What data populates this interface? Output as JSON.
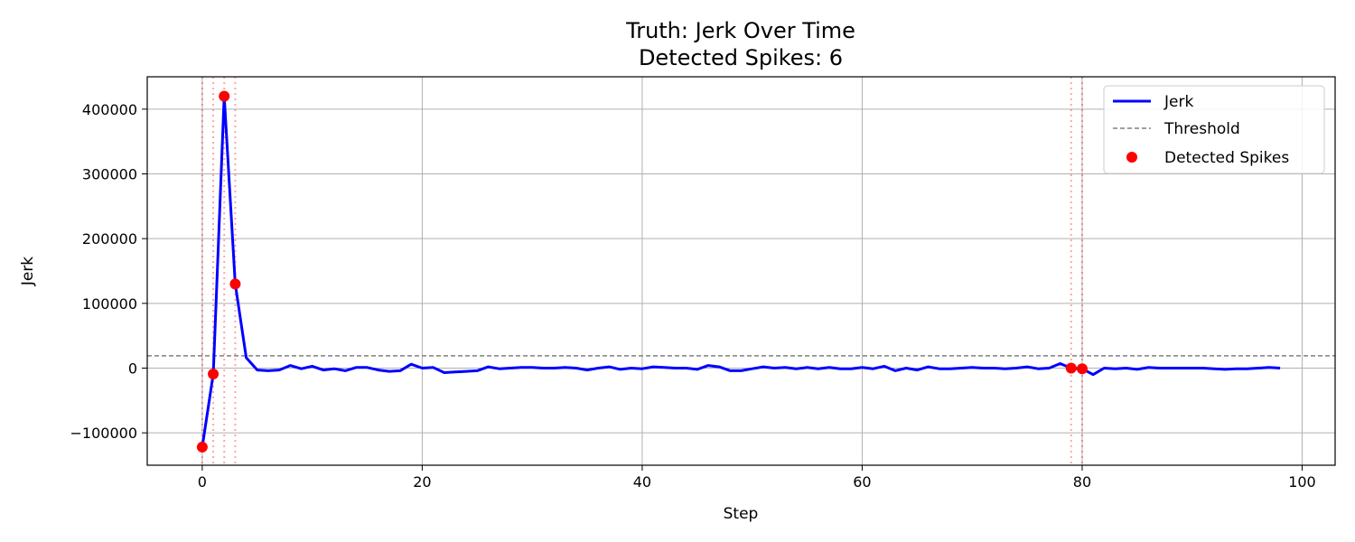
{
  "chart_data": {
    "type": "line",
    "title": "Truth: Jerk Over Time",
    "subtitle": "Detected Spikes: 6",
    "xlabel": "Step",
    "ylabel": "Jerk",
    "xlim": [
      -5,
      103
    ],
    "ylim": [
      -150000,
      450000
    ],
    "xticks": [
      0,
      20,
      40,
      60,
      80,
      100
    ],
    "xtick_labels": [
      "0",
      "20",
      "40",
      "60",
      "80",
      "100"
    ],
    "yticks": [
      -100000,
      0,
      100000,
      200000,
      300000,
      400000
    ],
    "ytick_labels": [
      "−100000",
      "0",
      "100000",
      "200000",
      "300000",
      "400000"
    ],
    "grid": true,
    "legend_position": "top-right",
    "threshold": 19000,
    "series": [
      {
        "name": "Jerk",
        "color": "#0000ff",
        "x": [
          0,
          1,
          2,
          3,
          4,
          5,
          6,
          7,
          8,
          9,
          10,
          11,
          12,
          13,
          14,
          15,
          16,
          17,
          18,
          19,
          20,
          21,
          22,
          23,
          24,
          25,
          26,
          27,
          28,
          29,
          30,
          31,
          32,
          33,
          34,
          35,
          36,
          37,
          38,
          39,
          40,
          41,
          42,
          43,
          44,
          45,
          46,
          47,
          48,
          49,
          50,
          51,
          52,
          53,
          54,
          55,
          56,
          57,
          58,
          59,
          60,
          61,
          62,
          63,
          64,
          65,
          66,
          67,
          68,
          69,
          70,
          71,
          72,
          73,
          74,
          75,
          76,
          77,
          78,
          79,
          80,
          81,
          82,
          83,
          84,
          85,
          86,
          87,
          88,
          89,
          90,
          91,
          92,
          93,
          94,
          95,
          96,
          97,
          98
        ],
        "y": [
          -122000,
          -9000,
          420000,
          130000,
          16000,
          -3000,
          -4000,
          -3000,
          4000,
          -1000,
          3000,
          -3000,
          -1000,
          -4000,
          1000,
          1000,
          -3000,
          -5000,
          -4000,
          6000,
          0,
          1000,
          -7000,
          -6000,
          -5000,
          -4000,
          2000,
          -1000,
          0,
          1000,
          1000,
          0,
          0,
          1000,
          0,
          -3000,
          0,
          2000,
          -2000,
          0,
          -1000,
          2000,
          1000,
          0,
          0,
          -2000,
          4000,
          2000,
          -4000,
          -4000,
          -1000,
          2000,
          0,
          1000,
          -1000,
          1000,
          -1000,
          1000,
          -1000,
          -1000,
          1000,
          -1000,
          3000,
          -4000,
          0,
          -3000,
          2000,
          -1000,
          -1000,
          0,
          1000,
          0,
          0,
          -1000,
          0,
          2000,
          -1000,
          0,
          7000,
          0,
          -1000,
          -10000,
          0,
          -1000,
          0,
          -2000,
          1000,
          0,
          0,
          0,
          0,
          0,
          -1000,
          -2000,
          -1000,
          -1000,
          0,
          1000,
          0
        ]
      },
      {
        "name": "Threshold",
        "color": "#808080",
        "style": "dashed"
      },
      {
        "name": "Detected Spikes",
        "color": "#ff0000",
        "x": [
          0,
          1,
          2,
          3,
          79,
          80
        ],
        "y": [
          -122000,
          -9000,
          420000,
          130000,
          0,
          -1000
        ]
      }
    ],
    "spike_lines": [
      0,
      1,
      2,
      3,
      79,
      80
    ]
  }
}
